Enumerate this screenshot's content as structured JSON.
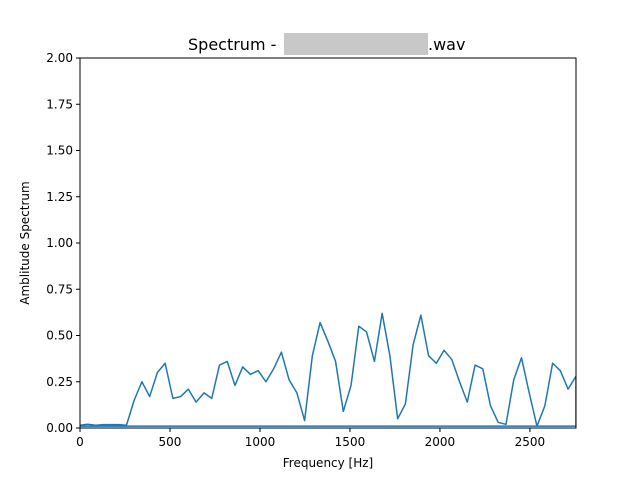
{
  "chart_data": {
    "type": "line",
    "title_prefix": "Spectrum - ",
    "title_suffix": ".wav",
    "redaction_color": "#c8c8c8",
    "xlabel": "Frequency [Hz]",
    "ylabel": "Amblitude Spectrum",
    "xlim": [
      0,
      2756
    ],
    "ylim": [
      0,
      2.0
    ],
    "xticks": [
      0,
      500,
      1000,
      1500,
      2000,
      2500
    ],
    "xtick_labels": [
      "0",
      "500",
      "1000",
      "1500",
      "2000",
      "2500"
    ],
    "yticks": [
      0,
      0.25,
      0.5,
      0.75,
      1.0,
      1.25,
      1.5,
      1.75,
      2.0
    ],
    "ytick_labels": [
      "0.00",
      "0.25",
      "0.50",
      "0.75",
      "1.00",
      "1.25",
      "1.50",
      "1.75",
      "2.00"
    ],
    "grid": false,
    "line_color": "#1f77b4",
    "series": [
      {
        "x": [
          0,
          43,
          86,
          129,
          172,
          215,
          258,
          301,
          344,
          387,
          430,
          473,
          516,
          559,
          602,
          645,
          689,
          732,
          775,
          818,
          861,
          904,
          947,
          990,
          1033,
          1076,
          1119,
          1162,
          1205,
          1248,
          1291,
          1334,
          1377,
          1420,
          1463,
          1506,
          1549,
          1592,
          1636,
          1679,
          1722,
          1765,
          1808,
          1851,
          1894,
          1937,
          1980,
          2023,
          2066,
          2109,
          2152,
          2195,
          2238,
          2281,
          2324,
          2367,
          2410,
          2453,
          2496,
          2539,
          2583,
          2626,
          2669,
          2712,
          2756,
          2756,
          0
        ],
        "y": [
          0.015,
          0.02,
          0.015,
          0.018,
          0.018,
          0.018,
          0.015,
          0.15,
          0.25,
          0.17,
          0.3,
          0.35,
          0.16,
          0.17,
          0.21,
          0.14,
          0.19,
          0.16,
          0.34,
          0.36,
          0.23,
          0.33,
          0.29,
          0.31,
          0.25,
          0.32,
          0.41,
          0.26,
          0.19,
          0.04,
          0.39,
          0.57,
          0.47,
          0.36,
          0.09,
          0.23,
          0.55,
          0.52,
          0.36,
          0.62,
          0.39,
          0.05,
          0.13,
          0.45,
          0.61,
          0.39,
          0.35,
          0.42,
          0.37,
          0.25,
          0.14,
          0.34,
          0.32,
          0.12,
          0.03,
          0.02,
          0.26,
          0.38,
          0.19,
          0.01,
          0.12,
          0.35,
          0.31,
          0.21,
          0.28,
          0.01,
          0.01
        ]
      }
    ]
  }
}
